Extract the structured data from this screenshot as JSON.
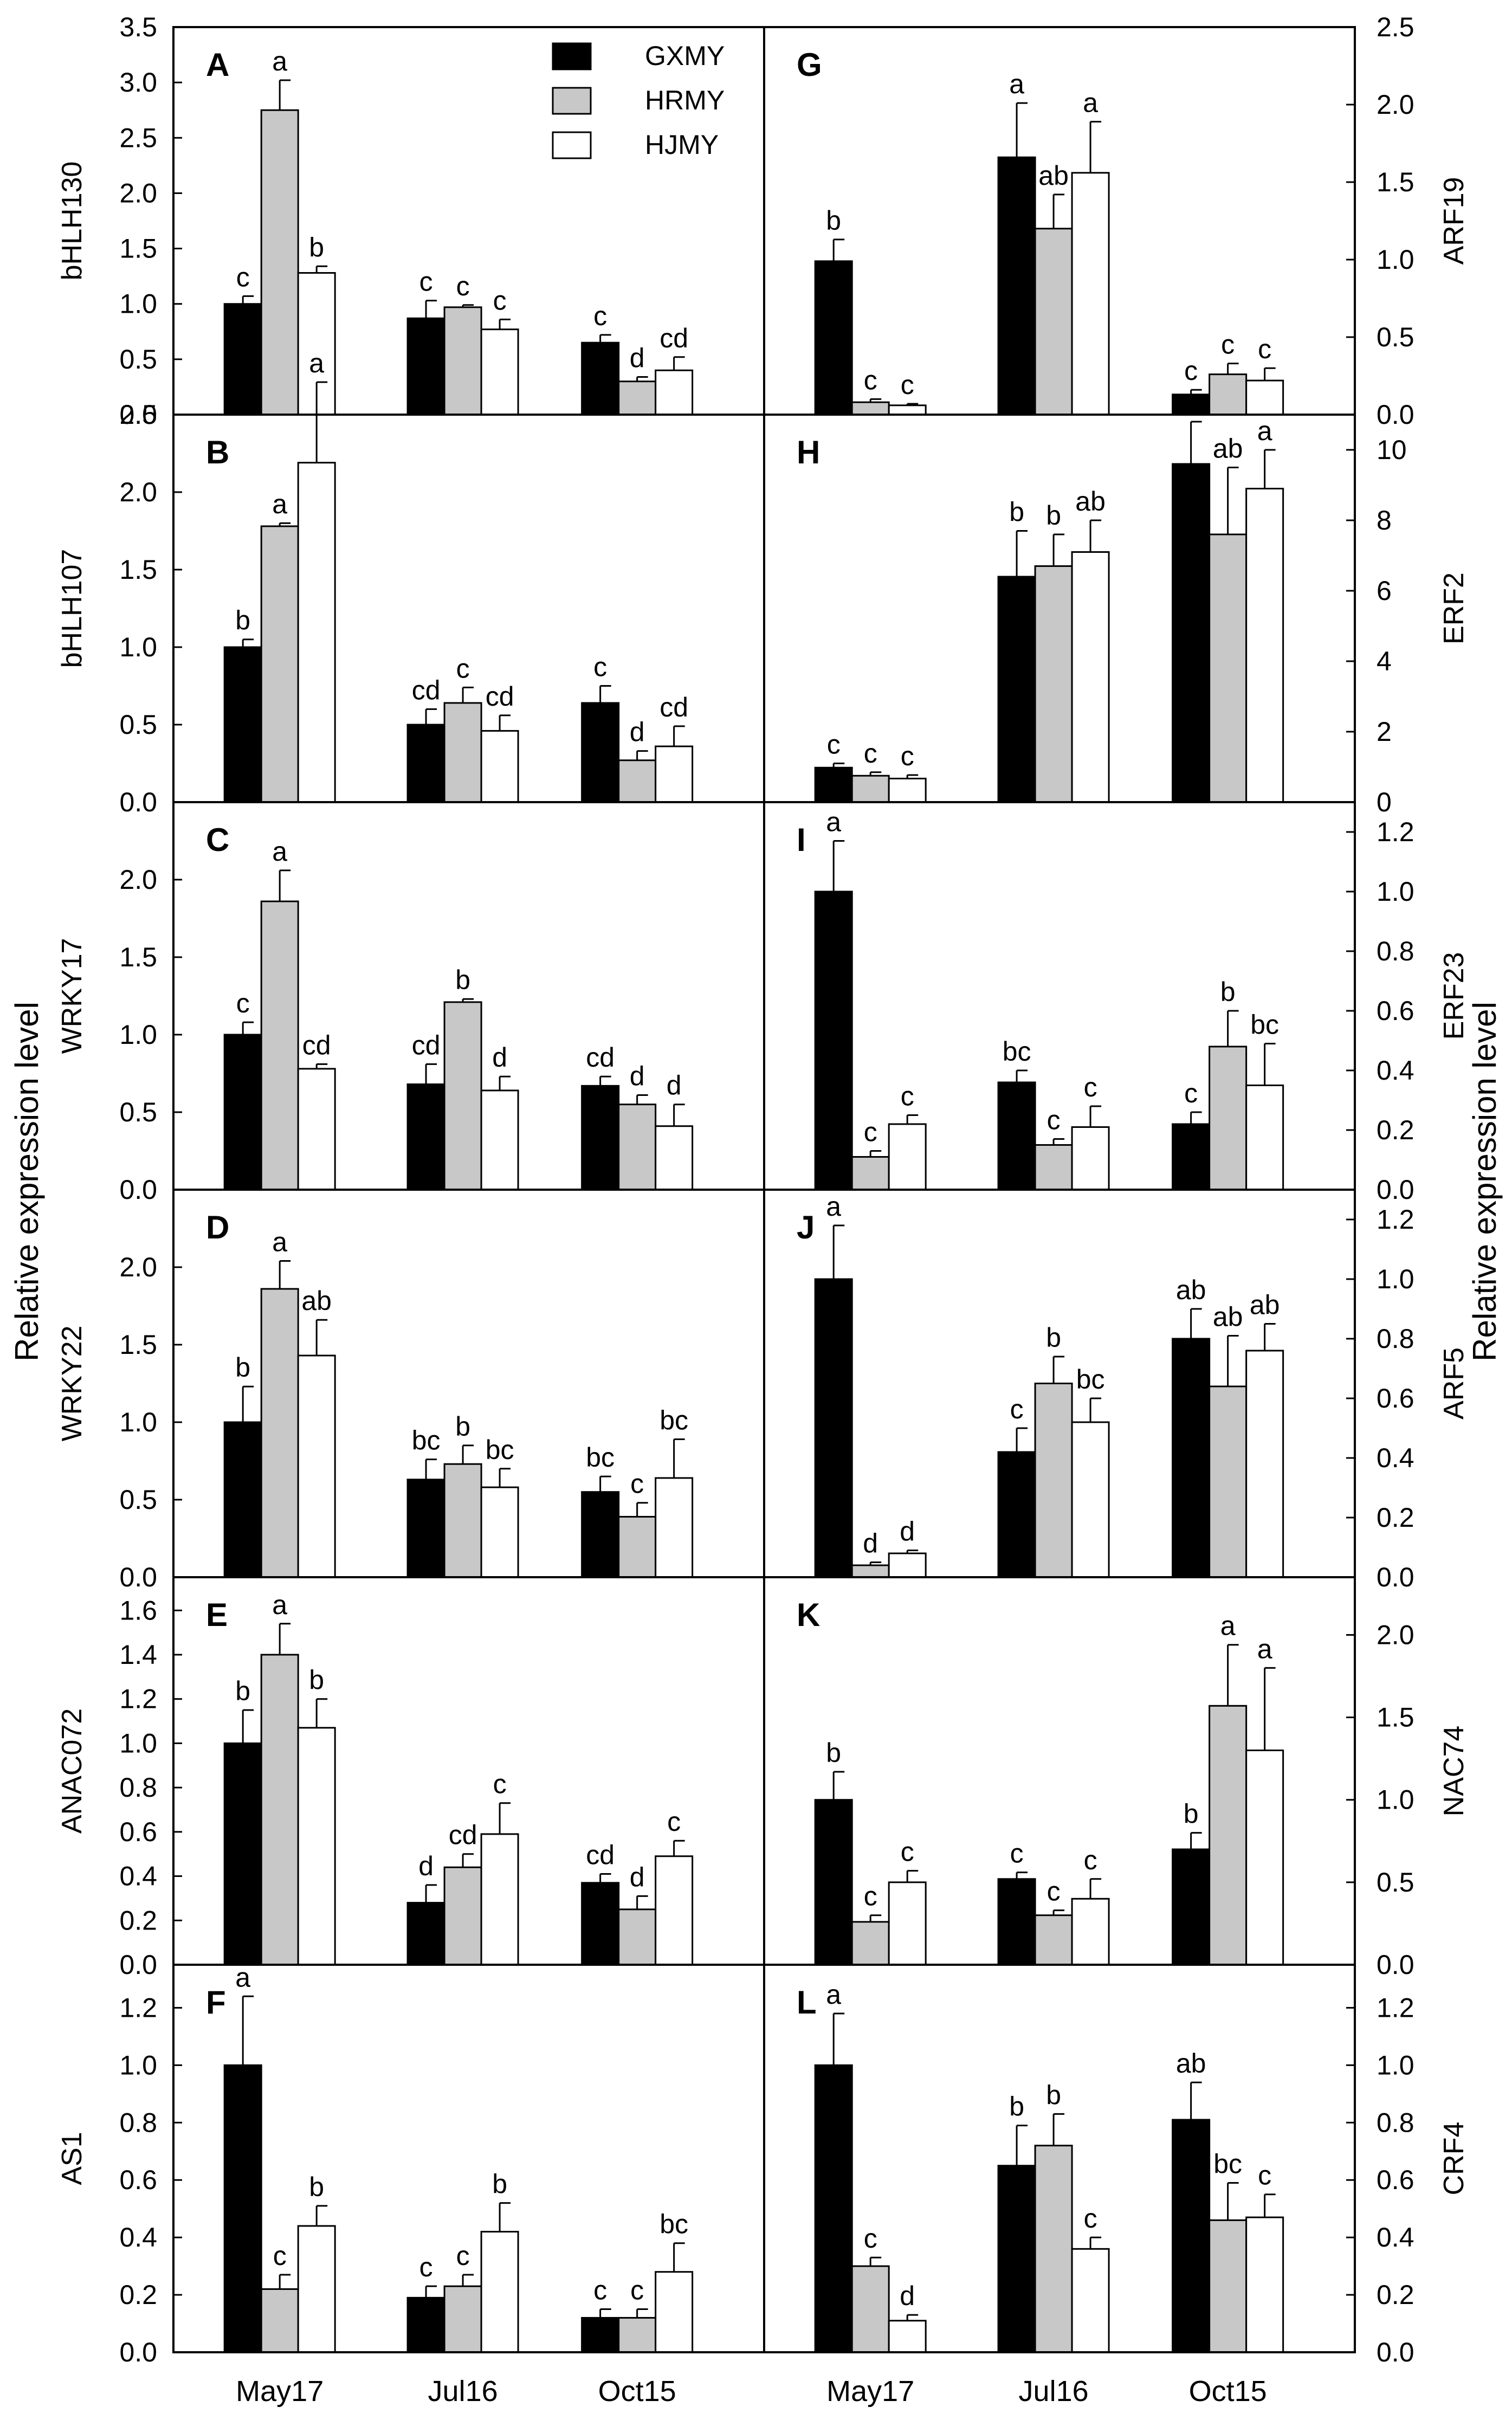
{
  "legend": [
    {
      "name": "GXMY",
      "color": "#000000"
    },
    {
      "name": "HRMY",
      "color": "#c8c8c8"
    },
    {
      "name": "HJMY",
      "color": "#ffffff"
    }
  ],
  "left_ylabel": "Relative expression level",
  "right_ylabel": "Relative expression level",
  "chart_data": [
    {
      "type": "bar",
      "panel": "A",
      "side": "left",
      "ylabel": "bHLH130",
      "categories": [
        "May17",
        "Jul16",
        "Oct15"
      ],
      "ylim": [
        0,
        3.5
      ],
      "yticks": [
        "0.0",
        "0.5",
        "1.0",
        "1.5",
        "2.0",
        "2.5",
        "3.0",
        "3.5"
      ],
      "ytick_values": [
        0,
        0.5,
        1.0,
        1.5,
        2.0,
        2.5,
        3.0,
        3.5
      ],
      "series": [
        {
          "name": "GXMY",
          "values": [
            1.0,
            0.87,
            0.65
          ],
          "errors": [
            0.07,
            0.16,
            0.07
          ],
          "labels": [
            "c",
            "c",
            "c"
          ]
        },
        {
          "name": "HRMY",
          "values": [
            2.75,
            0.97,
            0.3
          ],
          "errors": [
            0.27,
            0.02,
            0.04
          ],
          "labels": [
            "a",
            "c",
            "d"
          ]
        },
        {
          "name": "HJMY",
          "values": [
            1.28,
            0.77,
            0.4
          ],
          "errors": [
            0.06,
            0.09,
            0.12
          ],
          "labels": [
            "b",
            "c",
            "cd"
          ]
        }
      ]
    },
    {
      "type": "bar",
      "panel": "B",
      "side": "left",
      "ylabel": "bHLH107",
      "categories": [
        "May17",
        "Jul16",
        "Oct15"
      ],
      "ylim": [
        0,
        2.5
      ],
      "yticks": [
        "0.0",
        "0.5",
        "1.0",
        "1.5",
        "2.0",
        "2.5"
      ],
      "ytick_values": [
        0,
        0.5,
        1.0,
        1.5,
        2.0,
        2.5
      ],
      "series": [
        {
          "name": "GXMY",
          "values": [
            1.0,
            0.5,
            0.64
          ],
          "errors": [
            0.05,
            0.1,
            0.11
          ],
          "labels": [
            "b",
            "cd",
            "c"
          ]
        },
        {
          "name": "HRMY",
          "values": [
            1.78,
            0.64,
            0.27
          ],
          "errors": [
            0.02,
            0.1,
            0.06
          ],
          "labels": [
            "a",
            "c",
            "d"
          ]
        },
        {
          "name": "HJMY",
          "values": [
            2.19,
            0.46,
            0.36
          ],
          "errors": [
            0.52,
            0.1,
            0.13
          ],
          "labels": [
            "a",
            "cd",
            "cd"
          ]
        }
      ]
    },
    {
      "type": "bar",
      "panel": "C",
      "side": "left",
      "ylabel": "WRKY17",
      "categories": [
        "May17",
        "Jul16",
        "Oct15"
      ],
      "ylim": [
        0,
        2.5
      ],
      "yticks": [
        "0.0",
        "0.5",
        "1.0",
        "1.5",
        "2.0"
      ],
      "ytick_values": [
        0,
        0.5,
        1.0,
        1.5,
        2.0
      ],
      "series": [
        {
          "name": "GXMY",
          "values": [
            1.0,
            0.68,
            0.67
          ],
          "errors": [
            0.08,
            0.13,
            0.06
          ],
          "labels": [
            "c",
            "cd",
            "cd"
          ]
        },
        {
          "name": "HRMY",
          "values": [
            1.86,
            1.21,
            0.55
          ],
          "errors": [
            0.2,
            0.02,
            0.06
          ],
          "labels": [
            "a",
            "b",
            "d"
          ]
        },
        {
          "name": "HJMY",
          "values": [
            0.78,
            0.64,
            0.41
          ],
          "errors": [
            0.03,
            0.09,
            0.14
          ],
          "labels": [
            "cd",
            "d",
            "d"
          ]
        }
      ]
    },
    {
      "type": "bar",
      "panel": "D",
      "side": "left",
      "ylabel": "WRKY22",
      "categories": [
        "May17",
        "Jul16",
        "Oct15"
      ],
      "ylim": [
        0,
        2.5
      ],
      "yticks": [
        "0.0",
        "0.5",
        "1.0",
        "1.5",
        "2.0"
      ],
      "ytick_values": [
        0,
        0.5,
        1.0,
        1.5,
        2.0
      ],
      "series": [
        {
          "name": "GXMY",
          "values": [
            1.0,
            0.63,
            0.55
          ],
          "errors": [
            0.23,
            0.13,
            0.1
          ],
          "labels": [
            "b",
            "bc",
            "bc"
          ]
        },
        {
          "name": "HRMY",
          "values": [
            1.86,
            0.73,
            0.39
          ],
          "errors": [
            0.18,
            0.12,
            0.09
          ],
          "labels": [
            "a",
            "b",
            "c"
          ]
        },
        {
          "name": "HJMY",
          "values": [
            1.43,
            0.58,
            0.64
          ],
          "errors": [
            0.23,
            0.12,
            0.25
          ],
          "labels": [
            "ab",
            "bc",
            "bc"
          ]
        }
      ]
    },
    {
      "type": "bar",
      "panel": "E",
      "side": "left",
      "ylabel": "ANAC072",
      "categories": [
        "May17",
        "Jul16",
        "Oct15"
      ],
      "ylim": [
        0,
        1.75
      ],
      "yticks": [
        "0.0",
        "0.2",
        "0.4",
        "0.6",
        "0.8",
        "1.0",
        "1.2",
        "1.4",
        "1.6"
      ],
      "ytick_values": [
        0,
        0.2,
        0.4,
        0.6,
        0.8,
        1.0,
        1.2,
        1.4,
        1.6
      ],
      "series": [
        {
          "name": "GXMY",
          "values": [
            1.0,
            0.28,
            0.37
          ],
          "errors": [
            0.15,
            0.08,
            0.04
          ],
          "labels": [
            "b",
            "d",
            "cd"
          ]
        },
        {
          "name": "HRMY",
          "values": [
            1.4,
            0.44,
            0.25
          ],
          "errors": [
            0.14,
            0.06,
            0.06
          ],
          "labels": [
            "a",
            "cd",
            "d"
          ]
        },
        {
          "name": "HJMY",
          "values": [
            1.07,
            0.59,
            0.49
          ],
          "errors": [
            0.13,
            0.14,
            0.07
          ],
          "labels": [
            "b",
            "c",
            "c"
          ]
        }
      ]
    },
    {
      "type": "bar",
      "panel": "F",
      "side": "left",
      "ylabel": "AS1",
      "categories": [
        "May17",
        "Jul16",
        "Oct15"
      ],
      "ylim": [
        0,
        1.35
      ],
      "yticks": [
        "0.0",
        "0.2",
        "0.4",
        "0.6",
        "0.8",
        "1.0",
        "1.2"
      ],
      "ytick_values": [
        0,
        0.2,
        0.4,
        0.6,
        0.8,
        1.0,
        1.2
      ],
      "series": [
        {
          "name": "GXMY",
          "values": [
            1.0,
            0.19,
            0.12
          ],
          "errors": [
            0.24,
            0.04,
            0.03
          ],
          "labels": [
            "a",
            "c",
            "c"
          ]
        },
        {
          "name": "HRMY",
          "values": [
            0.22,
            0.23,
            0.12
          ],
          "errors": [
            0.05,
            0.04,
            0.03
          ],
          "labels": [
            "c",
            "c",
            "c"
          ]
        },
        {
          "name": "HJMY",
          "values": [
            0.44,
            0.42,
            0.28
          ],
          "errors": [
            0.07,
            0.1,
            0.1
          ],
          "labels": [
            "b",
            "b",
            "bc"
          ]
        }
      ]
    },
    {
      "type": "bar",
      "panel": "G",
      "side": "right",
      "ylabel": "ARF19",
      "categories": [
        "May17",
        "Jul16",
        "Oct15"
      ],
      "ylim": [
        0,
        2.5
      ],
      "yticks": [
        "0.0",
        "0.5",
        "1.0",
        "1.5",
        "2.0",
        "2.5"
      ],
      "ytick_values": [
        0,
        0.5,
        1.0,
        1.5,
        2.0,
        2.5
      ],
      "series": [
        {
          "name": "GXMY",
          "values": [
            0.99,
            1.66,
            0.13
          ],
          "errors": [
            0.14,
            0.35,
            0.03
          ],
          "labels": [
            "b",
            "a",
            "c"
          ]
        },
        {
          "name": "HRMY",
          "values": [
            0.08,
            1.2,
            0.26
          ],
          "errors": [
            0.02,
            0.22,
            0.07
          ],
          "labels": [
            "c",
            "ab",
            "c"
          ]
        },
        {
          "name": "HJMY",
          "values": [
            0.06,
            1.56,
            0.22
          ],
          "errors": [
            0.01,
            0.33,
            0.08
          ],
          "labels": [
            "c",
            "a",
            "c"
          ]
        }
      ]
    },
    {
      "type": "bar",
      "panel": "H",
      "side": "right",
      "ylabel": "ERF2",
      "categories": [
        "May17",
        "Jul16",
        "Oct15"
      ],
      "ylim": [
        0,
        11
      ],
      "yticks": [
        "0",
        "2",
        "4",
        "6",
        "8",
        "10"
      ],
      "ytick_values": [
        0,
        2,
        4,
        6,
        8,
        10
      ],
      "series": [
        {
          "name": "GXMY",
          "values": [
            0.98,
            6.4,
            9.6
          ],
          "errors": [
            0.12,
            1.3,
            1.2
          ],
          "labels": [
            "c",
            "b",
            "a"
          ]
        },
        {
          "name": "HRMY",
          "values": [
            0.75,
            6.7,
            7.6
          ],
          "errors": [
            0.1,
            0.9,
            1.9
          ],
          "labels": [
            "c",
            "b",
            "ab"
          ]
        },
        {
          "name": "HJMY",
          "values": [
            0.67,
            7.1,
            8.9
          ],
          "errors": [
            0.1,
            0.9,
            1.1
          ],
          "labels": [
            "c",
            "ab",
            "a"
          ]
        }
      ]
    },
    {
      "type": "bar",
      "panel": "I",
      "side": "right",
      "ylabel": "ERF23",
      "categories": [
        "May17",
        "Jul16",
        "Oct15"
      ],
      "ylim": [
        0,
        1.3
      ],
      "yticks": [
        "0.0",
        "0.2",
        "0.4",
        "0.6",
        "0.8",
        "1.0",
        "1.2"
      ],
      "ytick_values": [
        0,
        0.2,
        0.4,
        0.6,
        0.8,
        1.0,
        1.2
      ],
      "series": [
        {
          "name": "GXMY",
          "values": [
            1.0,
            0.36,
            0.22
          ],
          "errors": [
            0.17,
            0.04,
            0.04
          ],
          "labels": [
            "a",
            "bc",
            "c"
          ]
        },
        {
          "name": "HRMY",
          "values": [
            0.11,
            0.15,
            0.48
          ],
          "errors": [
            0.02,
            0.02,
            0.12
          ],
          "labels": [
            "c",
            "c",
            "b"
          ]
        },
        {
          "name": "HJMY",
          "values": [
            0.22,
            0.21,
            0.35
          ],
          "errors": [
            0.03,
            0.07,
            0.14
          ],
          "labels": [
            "c",
            "c",
            "bc"
          ]
        }
      ]
    },
    {
      "type": "bar",
      "panel": "J",
      "side": "right",
      "ylabel": "ARF5",
      "categories": [
        "May17",
        "Jul16",
        "Oct15"
      ],
      "ylim": [
        0,
        1.3
      ],
      "yticks": [
        "0.0",
        "0.2",
        "0.4",
        "0.6",
        "0.8",
        "1.0",
        "1.2"
      ],
      "ytick_values": [
        0,
        0.2,
        0.4,
        0.6,
        0.8,
        1.0,
        1.2
      ],
      "series": [
        {
          "name": "GXMY",
          "values": [
            1.0,
            0.42,
            0.8
          ],
          "errors": [
            0.18,
            0.08,
            0.1
          ],
          "labels": [
            "a",
            "c",
            "ab"
          ]
        },
        {
          "name": "HRMY",
          "values": [
            0.04,
            0.65,
            0.64
          ],
          "errors": [
            0.01,
            0.09,
            0.17
          ],
          "labels": [
            "d",
            "b",
            "ab"
          ]
        },
        {
          "name": "HJMY",
          "values": [
            0.08,
            0.52,
            0.76
          ],
          "errors": [
            0.01,
            0.08,
            0.09
          ],
          "labels": [
            "d",
            "bc",
            "ab"
          ]
        }
      ]
    },
    {
      "type": "bar",
      "panel": "K",
      "side": "right",
      "ylabel": "NAC74",
      "categories": [
        "May17",
        "Jul16",
        "Oct15"
      ],
      "ylim": [
        0,
        2.35
      ],
      "yticks": [
        "0.0",
        "0.5",
        "1.0",
        "1.5",
        "2.0"
      ],
      "ytick_values": [
        0,
        0.5,
        1.0,
        1.5,
        2.0
      ],
      "series": [
        {
          "name": "GXMY",
          "values": [
            1.0,
            0.52,
            0.7
          ],
          "errors": [
            0.17,
            0.04,
            0.1
          ],
          "labels": [
            "b",
            "c",
            "b"
          ]
        },
        {
          "name": "HRMY",
          "values": [
            0.26,
            0.3,
            1.57
          ],
          "errors": [
            0.04,
            0.03,
            0.37
          ],
          "labels": [
            "c",
            "c",
            "a"
          ]
        },
        {
          "name": "HJMY",
          "values": [
            0.5,
            0.4,
            1.3
          ],
          "errors": [
            0.07,
            0.12,
            0.5
          ],
          "labels": [
            "c",
            "c",
            "a"
          ]
        }
      ]
    },
    {
      "type": "bar",
      "panel": "L",
      "side": "right",
      "ylabel": "CRF4",
      "categories": [
        "May17",
        "Jul16",
        "Oct15"
      ],
      "ylim": [
        0,
        1.35
      ],
      "yticks": [
        "0.0",
        "0.2",
        "0.4",
        "0.6",
        "0.8",
        "1.0",
        "1.2"
      ],
      "ytick_values": [
        0,
        0.2,
        0.4,
        0.6,
        0.8,
        1.0,
        1.2
      ],
      "series": [
        {
          "name": "GXMY",
          "values": [
            1.0,
            0.65,
            0.81
          ],
          "errors": [
            0.18,
            0.14,
            0.13
          ],
          "labels": [
            "a",
            "b",
            "ab"
          ]
        },
        {
          "name": "HRMY",
          "values": [
            0.3,
            0.72,
            0.46
          ],
          "errors": [
            0.03,
            0.11,
            0.13
          ],
          "labels": [
            "c",
            "b",
            "bc"
          ]
        },
        {
          "name": "HJMY",
          "values": [
            0.11,
            0.36,
            0.47
          ],
          "errors": [
            0.02,
            0.04,
            0.08
          ],
          "labels": [
            "d",
            "c",
            "c"
          ]
        }
      ]
    }
  ]
}
